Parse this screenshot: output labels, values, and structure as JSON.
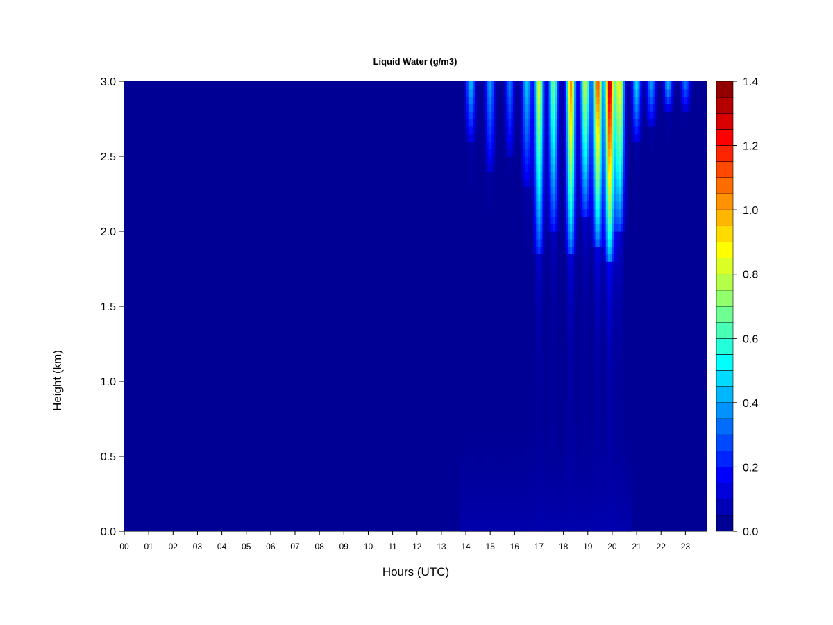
{
  "chart_data": {
    "type": "heatmap",
    "title": "Liquid Water (g/m3)",
    "xlabel": "Hours (UTC)",
    "ylabel": "Height (km)",
    "x_ticks": [
      "00",
      "01",
      "02",
      "03",
      "04",
      "05",
      "06",
      "07",
      "08",
      "09",
      "10",
      "11",
      "12",
      "13",
      "14",
      "15",
      "16",
      "17",
      "18",
      "19",
      "20",
      "21",
      "22",
      "23"
    ],
    "y_ticks": [
      "0.0",
      "0.5",
      "1.0",
      "1.5",
      "2.0",
      "2.5",
      "3.0"
    ],
    "xlim": [
      0,
      23.9
    ],
    "ylim": [
      0,
      3.0
    ],
    "colorbar": {
      "range": [
        0,
        1.4
      ],
      "levels": 28,
      "ticks": [
        "0.0",
        "0.2",
        "0.4",
        "0.6",
        "0.8",
        "1.0",
        "1.2",
        "1.4"
      ],
      "colormap": "jet"
    },
    "cloud_events": [
      {
        "hour": 14.2,
        "base_km": 2.6,
        "peak": 0.45
      },
      {
        "hour": 15.0,
        "base_km": 2.4,
        "peak": 0.4
      },
      {
        "hour": 15.8,
        "base_km": 2.5,
        "peak": 0.35
      },
      {
        "hour": 16.5,
        "base_km": 2.3,
        "peak": 0.45
      },
      {
        "hour": 17.0,
        "base_km": 1.85,
        "peak": 0.85
      },
      {
        "hour": 17.6,
        "base_km": 2.0,
        "peak": 0.7
      },
      {
        "hour": 18.3,
        "base_km": 1.85,
        "peak": 1.05
      },
      {
        "hour": 18.9,
        "base_km": 2.1,
        "peak": 0.8
      },
      {
        "hour": 19.4,
        "base_km": 1.9,
        "peak": 1.15
      },
      {
        "hour": 19.9,
        "base_km": 1.8,
        "peak": 1.35
      },
      {
        "hour": 20.3,
        "base_km": 2.0,
        "peak": 0.9
      },
      {
        "hour": 21.0,
        "base_km": 2.6,
        "peak": 0.5
      },
      {
        "hour": 21.6,
        "base_km": 2.7,
        "peak": 0.4
      },
      {
        "hour": 22.3,
        "base_km": 2.8,
        "peak": 0.45
      },
      {
        "hour": 23.0,
        "base_km": 2.8,
        "peak": 0.35
      }
    ]
  }
}
